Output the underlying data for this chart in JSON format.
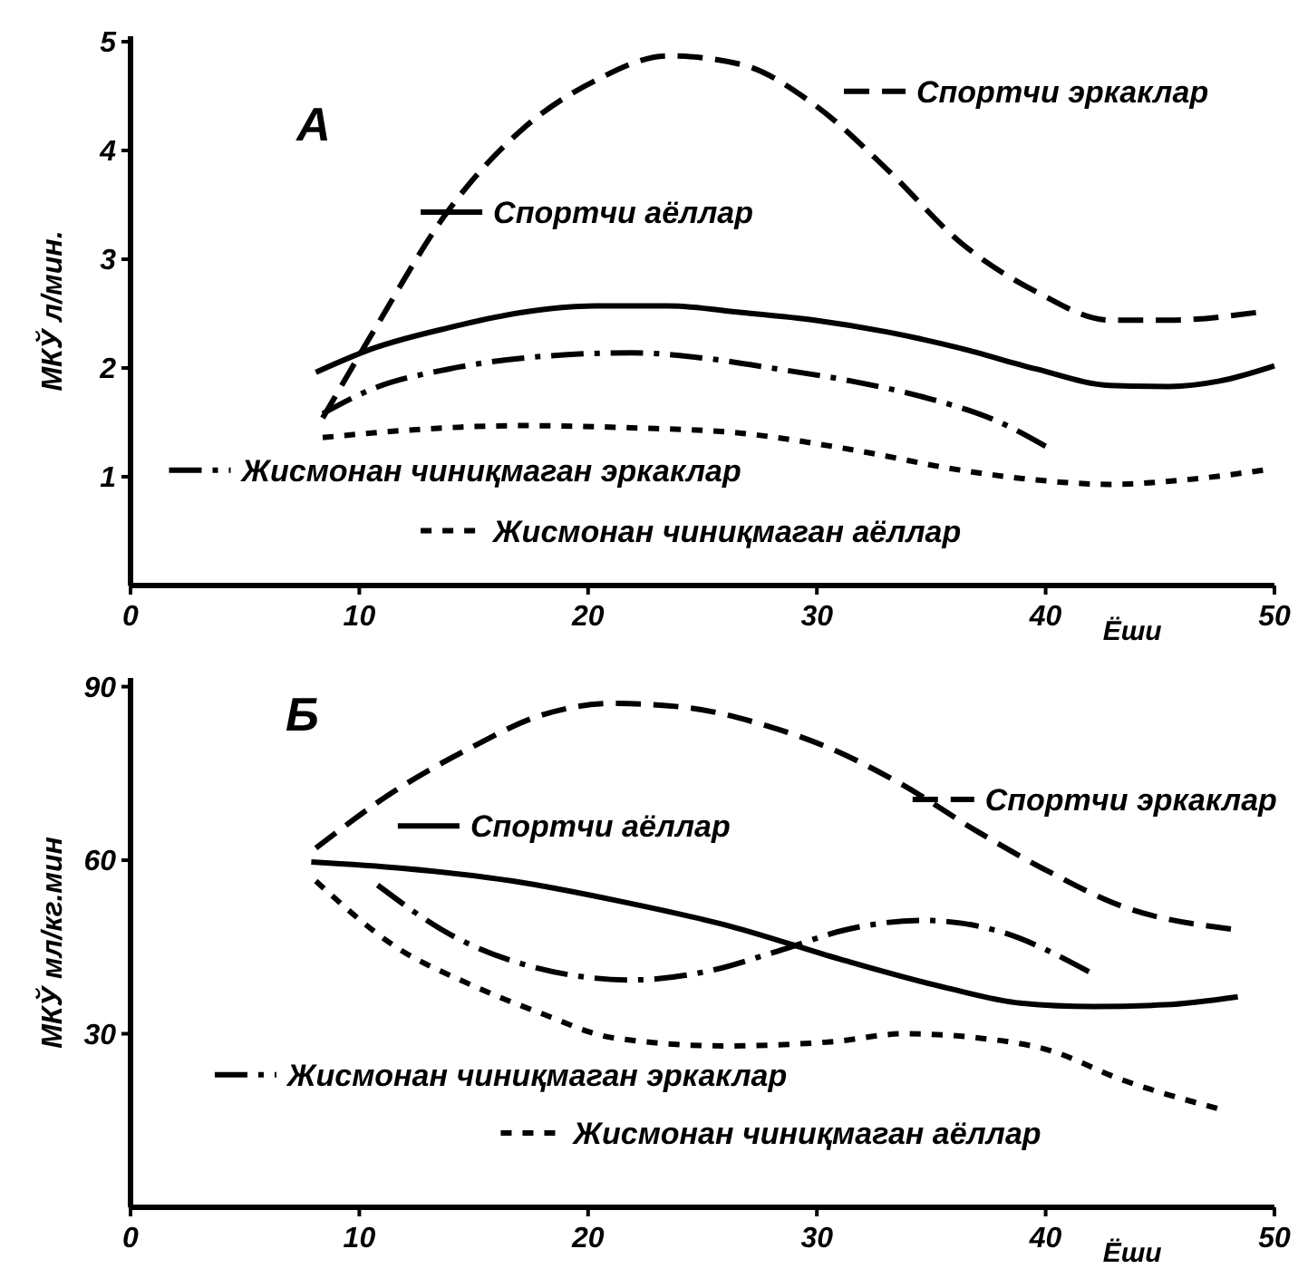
{
  "chart_data": [
    {
      "type": "line",
      "title": "А",
      "xlabel": "Ёши",
      "ylabel": "МКЎ л/мин.",
      "xlim": [
        0,
        50
      ],
      "ylim": [
        0,
        5.05
      ],
      "xticks": [
        0,
        10,
        20,
        30,
        40,
        50
      ],
      "yticks": [
        1,
        2,
        3,
        4,
        5
      ],
      "grid": false,
      "legend": "bottom left",
      "series": [
        {
          "name": "Спортчи эркаклар",
          "color": "#000000",
          "line_style": "dashed",
          "x": [
            8.4,
            10.6,
            13.9,
            17.1,
            20.3,
            23.5,
            26.7,
            29.9,
            33.1,
            36.3,
            39.6,
            42.8,
            45.4,
            49.2
          ],
          "values": [
            1.54,
            2.33,
            3.45,
            4.19,
            4.64,
            4.87,
            4.79,
            4.42,
            3.82,
            3.15,
            2.7,
            2.44,
            2.44,
            2.51
          ]
        },
        {
          "name": "Спортчи аёллар",
          "color": "#000000",
          "line_style": "solid",
          "x": [
            8.1,
            10.6,
            13.9,
            17.1,
            20.3,
            23.5,
            26.7,
            29.9,
            33.1,
            36.3,
            39.6,
            42.8,
            45.4,
            47.6,
            50
          ],
          "values": [
            1.96,
            2.18,
            2.37,
            2.51,
            2.57,
            2.57,
            2.51,
            2.44,
            2.33,
            2.18,
            1.99,
            1.84,
            1.83,
            1.88,
            2.02
          ]
        },
        {
          "name": "Жисмонан чиниқмаган эркаклар",
          "color": "#000000",
          "line_style": "dashdot",
          "x": [
            8.4,
            10.6,
            13.9,
            17.1,
            21.9,
            25.1,
            28.3,
            31.5,
            34.7,
            37.9,
            40
          ],
          "values": [
            1.58,
            1.81,
            1.99,
            2.09,
            2.14,
            2.09,
            1.99,
            1.88,
            1.73,
            1.51,
            1.28
          ]
        },
        {
          "name": "Жисмонан чиниқмаган аёллар",
          "color": "#000000",
          "line_style": "dotted",
          "x": [
            8.4,
            12.2,
            17.1,
            21.9,
            26.7,
            31.5,
            36.3,
            39.6,
            42.8,
            46,
            49.5
          ],
          "values": [
            1.36,
            1.43,
            1.47,
            1.45,
            1.4,
            1.25,
            1.06,
            0.97,
            0.93,
            0.97,
            1.06
          ]
        }
      ]
    },
    {
      "type": "line",
      "title": "Б",
      "xlabel": "Ёши",
      "ylabel": "МКЎ мл/кг.мин",
      "xlim": [
        0,
        50
      ],
      "ylim": [
        0,
        91.5
      ],
      "xticks": [
        0,
        10,
        20,
        30,
        40,
        50
      ],
      "yticks": [
        30,
        60,
        90
      ],
      "grid": false,
      "legend": "bottom right",
      "series": [
        {
          "name": "Спортчи эркаклар",
          "color": "#000000",
          "line_style": "dashed",
          "x": [
            8.1,
            11.6,
            14.8,
            17.9,
            21.1,
            24.3,
            27.5,
            30.6,
            33.8,
            37,
            40.2,
            43.3,
            48.1
          ],
          "values": [
            62.1,
            72.1,
            79.3,
            85,
            87.1,
            86.4,
            83.6,
            79.3,
            72.9,
            65,
            57.9,
            52.1,
            48.1
          ]
        },
        {
          "name": "Спортчи аёллар",
          "color": "#000000",
          "line_style": "solid",
          "x": [
            7.9,
            11.9,
            16.7,
            21.4,
            26.2,
            31,
            35.7,
            38.9,
            42.1,
            45.2,
            48.4
          ],
          "values": [
            59.7,
            58.6,
            56.4,
            52.9,
            48.6,
            42.9,
            37.9,
            35.3,
            34.7,
            35,
            36.4
          ]
        },
        {
          "name": "Жисмонан чиниқмаган эркаклар",
          "color": "#000000",
          "line_style": "dashdot",
          "x": [
            10.8,
            14,
            17.1,
            21.9,
            25.1,
            28.3,
            31.4,
            34.6,
            37.8,
            41.9
          ],
          "values": [
            55.7,
            47.1,
            42.1,
            39.3,
            40.7,
            44.3,
            48.1,
            49.6,
            47.9,
            40.7
          ]
        },
        {
          "name": "Жисмонан чиниқмаган аёллар",
          "color": "#000000",
          "line_style": "dotted",
          "x": [
            8.1,
            11.6,
            14.8,
            17.9,
            21.1,
            25.9,
            30.6,
            33.8,
            37,
            40.2,
            43.3,
            47.5
          ],
          "values": [
            56.4,
            45,
            38.6,
            33.6,
            29.3,
            27.9,
            28.6,
            30,
            29.3,
            27.1,
            22.1,
            17.1
          ]
        }
      ]
    }
  ]
}
